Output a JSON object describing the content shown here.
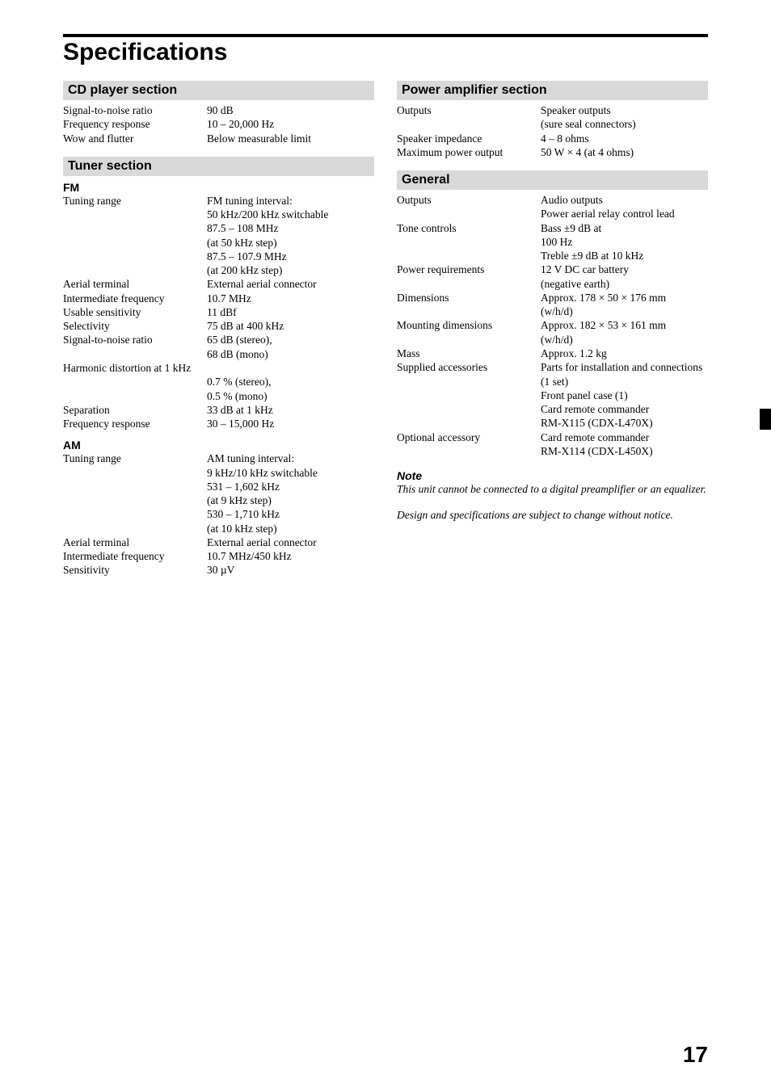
{
  "page": {
    "title": "Specifications",
    "page_number": "17"
  },
  "left": {
    "cd": {
      "header": "CD player section",
      "rows": [
        {
          "label": "Signal-to-noise ratio",
          "value": "90 dB"
        },
        {
          "label": "Frequency response",
          "value": "10 – 20,000 Hz"
        },
        {
          "label": "Wow and flutter",
          "value": "Below measurable limit"
        }
      ]
    },
    "tuner": {
      "header": "Tuner section",
      "fm": {
        "sub": "FM",
        "rows": [
          {
            "label": "Tuning range",
            "value": "FM tuning interval:\n50 kHz/200 kHz switchable\n87.5 – 108 MHz\n(at 50 kHz step)\n87.5 – 107.9 MHz\n(at 200 kHz step)"
          },
          {
            "label": "Aerial terminal",
            "value": "External aerial connector"
          },
          {
            "label": "Intermediate frequency",
            "value": "10.7 MHz"
          },
          {
            "label": "Usable sensitivity",
            "value": "11 dBf"
          },
          {
            "label": "Selectivity",
            "value": "75 dB at 400 kHz"
          },
          {
            "label": "Signal-to-noise ratio",
            "value": "65 dB (stereo),\n68 dB (mono)"
          },
          {
            "label": "Harmonic distortion at 1 kHz",
            "value": "\n0.7 % (stereo),\n0.5 % (mono)"
          },
          {
            "label": "Separation",
            "value": "33 dB at 1 kHz"
          },
          {
            "label": "Frequency response",
            "value": "30 – 15,000 Hz"
          }
        ]
      },
      "am": {
        "sub": "AM",
        "rows": [
          {
            "label": "Tuning range",
            "value": "AM tuning interval:\n9 kHz/10 kHz switchable\n531 – 1,602 kHz\n(at 9 kHz step)\n530 – 1,710 kHz\n(at 10 kHz step)"
          },
          {
            "label": "Aerial terminal",
            "value": "External aerial connector"
          },
          {
            "label": "Intermediate frequency",
            "value": "10.7 MHz/450 kHz"
          },
          {
            "label": "Sensitivity",
            "value": "30 µV"
          }
        ]
      }
    }
  },
  "right": {
    "amp": {
      "header": "Power amplifier section",
      "rows": [
        {
          "label": "Outputs",
          "value": "Speaker outputs\n(sure seal connectors)"
        },
        {
          "label": "Speaker impedance",
          "value": "4 – 8 ohms"
        },
        {
          "label": "Maximum power output",
          "value": "50 W × 4 (at 4 ohms)"
        }
      ]
    },
    "general": {
      "header": "General",
      "rows": [
        {
          "label": "Outputs",
          "value": "Audio outputs\nPower aerial relay control lead"
        },
        {
          "label": "Tone controls",
          "value": "Bass ±9 dB at\n100 Hz\nTreble ±9 dB at 10 kHz"
        },
        {
          "label": "Power requirements",
          "value": "12 V DC car battery\n(negative earth)"
        },
        {
          "label": "Dimensions",
          "value": "Approx. 178 × 50 × 176 mm\n(w/h/d)"
        },
        {
          "label": "Mounting dimensions",
          "value": "Approx. 182 × 53 × 161 mm\n(w/h/d)"
        },
        {
          "label": "Mass",
          "value": "Approx. 1.2 kg"
        },
        {
          "label": "Supplied accessories",
          "value": "Parts for installation and connections (1 set)\nFront panel case (1)\nCard remote commander\nRM-X115 (CDX-L470X)"
        },
        {
          "label": "Optional accessory",
          "value": "Card remote commander\nRM-X114 (CDX-L450X)"
        }
      ]
    },
    "note": {
      "head": "Note",
      "body": "This unit cannot be connected to a digital preamplifier or an equalizer."
    },
    "design_note": "Design and specifications are subject to change without notice."
  }
}
